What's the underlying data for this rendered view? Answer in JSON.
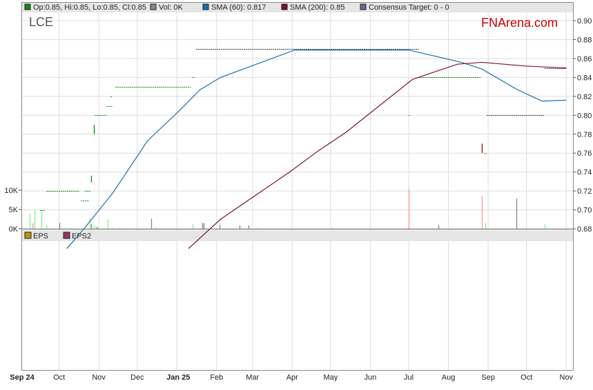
{
  "legend": [
    {
      "label": "Op:0.85, Hi:0.85, Lo:0.85, Cl:0.85",
      "color": "#118811"
    },
    {
      "label": "Vol: 0K",
      "color": "#888888"
    },
    {
      "label": "SMA (60): 0.817",
      "color": "#1a6faf"
    },
    {
      "label": "SMA (200): 0.85",
      "color": "#7a1030"
    },
    {
      "label": "Consensus Target: 0 - 0",
      "color": "#6a6a9a"
    }
  ],
  "eps_legend": [
    {
      "label": "EPS",
      "color": "#b8960c"
    },
    {
      "label": "EPS2",
      "color": "#993366"
    }
  ],
  "ticker": "LCE",
  "brand": "FNArena.com",
  "brand_color": "#cc0000",
  "chart_data": {
    "type": "line",
    "ylim": [
      0.68,
      0.9
    ],
    "y_ticks": [
      "0.90",
      "0.88",
      "0.86",
      "0.84",
      "0.82",
      "0.80",
      "0.78",
      "0.76",
      "0.74",
      "0.72",
      "0.70",
      "0.68"
    ],
    "vol_ticks": [
      "10K",
      "5K",
      "0K"
    ],
    "x_ticks": [
      {
        "label": "Sep 24",
        "date": "2024-09-01",
        "bold": true
      },
      {
        "label": "Oct",
        "date": "2024-10-01"
      },
      {
        "label": "Nov",
        "date": "2024-11-01"
      },
      {
        "label": "Dec",
        "date": "2024-12-01"
      },
      {
        "label": "Jan 25",
        "date": "2025-01-01",
        "bold": true
      },
      {
        "label": "Feb",
        "date": "2025-02-01"
      },
      {
        "label": "Mar",
        "date": "2025-03-01"
      },
      {
        "label": "Apr",
        "date": "2025-04-01"
      },
      {
        "label": "May",
        "date": "2025-05-01"
      },
      {
        "label": "Jun",
        "date": "2025-06-01"
      },
      {
        "label": "Jul",
        "date": "2025-07-01"
      },
      {
        "label": "Aug",
        "date": "2025-08-01"
      },
      {
        "label": "Sep",
        "date": "2025-09-01"
      },
      {
        "label": "Oct",
        "date": "2025-10-01"
      },
      {
        "label": "Nov",
        "date": "2025-11-01"
      }
    ],
    "grid": true,
    "sma60": [
      [
        "2024-10-07",
        0.659
      ],
      [
        "2024-10-21",
        0.681
      ],
      [
        "2024-11-12",
        0.718
      ],
      [
        "2024-12-09",
        0.773
      ],
      [
        "2025-01-03",
        0.805
      ],
      [
        "2025-01-19",
        0.827
      ],
      [
        "2025-02-04",
        0.84
      ],
      [
        "2025-04-03",
        0.869
      ],
      [
        "2025-07-01",
        0.869
      ],
      [
        "2025-08-11",
        0.856
      ],
      [
        "2025-08-27",
        0.849
      ],
      [
        "2025-09-24",
        0.827
      ],
      [
        "2025-10-13",
        0.815
      ],
      [
        "2025-11-01",
        0.816
      ]
    ],
    "sma200": [
      [
        "2025-01-10",
        0.659
      ],
      [
        "2025-02-04",
        0.69
      ],
      [
        "2025-03-30",
        0.74
      ],
      [
        "2025-04-21",
        0.762
      ],
      [
        "2025-05-13",
        0.782
      ],
      [
        "2025-07-04",
        0.838
      ],
      [
        "2025-08-08",
        0.854
      ],
      [
        "2025-08-27",
        0.856
      ],
      [
        "2025-10-01",
        0.852
      ],
      [
        "2025-11-01",
        0.85
      ]
    ],
    "price_segments": [
      [
        "2024-09-16",
        "2024-09-20",
        0.7,
        "#118811"
      ],
      [
        "2024-09-21",
        "2024-10-17",
        0.72,
        "#118811"
      ],
      [
        "2024-10-18",
        "2024-10-24",
        0.71,
        "#118811"
      ],
      [
        "2024-10-21",
        "2024-10-26",
        0.72,
        "#118811"
      ],
      [
        "2024-10-29",
        "2024-11-07",
        0.8,
        "#118811"
      ],
      [
        "2024-11-07",
        "2024-11-12",
        0.81,
        "#118811"
      ],
      [
        "2024-11-10",
        "2024-11-11",
        0.82,
        "#118811"
      ],
      [
        "2024-11-14",
        "2025-01-12",
        0.83,
        "#118811"
      ],
      [
        "2025-01-13",
        "2025-01-15",
        0.84,
        "#118811"
      ],
      [
        "2025-01-16",
        "2025-07-09",
        0.87,
        "#333333"
      ],
      [
        "2025-07-01",
        "2025-07-02",
        0.8,
        "#118811"
      ],
      [
        "2025-07-09",
        "2025-08-26",
        0.84,
        "#118811"
      ],
      [
        "2025-08-29",
        "2025-08-31",
        0.76,
        "#118811"
      ],
      [
        "2025-08-31",
        "2025-10-15",
        0.8,
        "#333333"
      ],
      [
        "2025-10-15",
        "2025-11-01",
        0.85,
        "#333333"
      ]
    ],
    "price_ranges": [
      [
        "2024-10-26",
        0.729,
        0.736,
        "#118811"
      ],
      [
        "2024-10-28",
        0.78,
        0.79,
        "#118811"
      ],
      [
        "2025-08-27",
        0.76,
        0.77,
        "#aa0000"
      ]
    ],
    "volume_k": [
      [
        "2024-09-08",
        3.8,
        "#88ee88"
      ],
      [
        "2024-09-10",
        1.4,
        "#ff9999"
      ],
      [
        "2024-09-12",
        4.8,
        "#88ee88"
      ],
      [
        "2024-09-17",
        4.6,
        "#88ee88"
      ],
      [
        "2024-09-21",
        0.9,
        "#88ee88"
      ],
      [
        "2024-10-01",
        1.5,
        "#888888"
      ],
      [
        "2024-10-25",
        2.7,
        "#88ee88"
      ],
      [
        "2024-10-26",
        1.2,
        "#888888"
      ],
      [
        "2024-10-28",
        0.8,
        "#88ee88"
      ],
      [
        "2024-10-30",
        0.6,
        "#88ee88"
      ],
      [
        "2024-10-31",
        0.4,
        "#888888"
      ],
      [
        "2024-11-08",
        2.4,
        "#88ee88"
      ],
      [
        "2024-11-11",
        0.3,
        "#88ee88"
      ],
      [
        "2024-11-17",
        0.1,
        "#888888"
      ],
      [
        "2024-12-12",
        2.6,
        "#888888"
      ],
      [
        "2024-12-15",
        0.2,
        "#888888"
      ],
      [
        "2025-01-13",
        1.2,
        "#88ee88"
      ],
      [
        "2025-01-21",
        1.5,
        "#888888"
      ],
      [
        "2025-01-22",
        1.5,
        "#888888"
      ],
      [
        "2025-02-03",
        1.1,
        "#888888"
      ],
      [
        "2025-02-19",
        0.9,
        "#888888"
      ],
      [
        "2025-02-26",
        0.9,
        "#888888"
      ],
      [
        "2025-03-05",
        0.1,
        "#888888"
      ],
      [
        "2025-05-02",
        0.1,
        "#888888"
      ],
      [
        "2025-07-01",
        10.3,
        "#ff9999"
      ],
      [
        "2025-07-24",
        1.0,
        "#888888"
      ],
      [
        "2025-08-27",
        8.5,
        "#ff9999"
      ],
      [
        "2025-08-30",
        1.5,
        "#88ee88"
      ],
      [
        "2025-09-23",
        7.8,
        "#888888"
      ],
      [
        "2025-10-15",
        1.2,
        "#88ee88"
      ]
    ]
  }
}
